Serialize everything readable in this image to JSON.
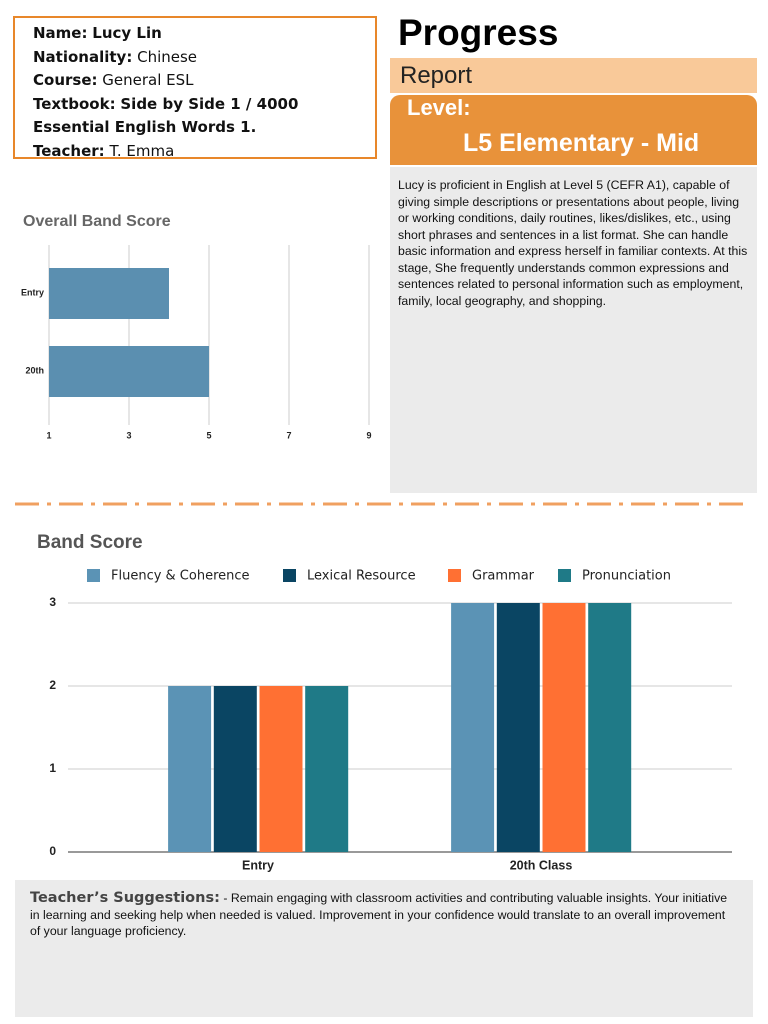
{
  "student": [
    {
      "label": "Name:",
      "value": "Lucy Lin"
    },
    {
      "label": "Nationality:",
      "value": "Chinese"
    },
    {
      "label": "Course:",
      "value": "General ESL"
    },
    {
      "label": "Textbook:",
      "value": "Side by Side 1 / 4000 Essential English Words 1."
    },
    {
      "label": "Teacher:",
      "value": "T. Emma"
    }
  ],
  "header": {
    "title": "Progress",
    "subtitle": "Report",
    "level_label": "Level:",
    "level": "L5 Elementary - Mid"
  },
  "description": "Lucy is proficient in English at Level 5 (CEFR A1), capable of giving simple descriptions or presentations about people, living or working conditions, daily routines, likes/dislikes, etc., using short phrases and sentences in a list format. She can handle basic information and express herself in familiar contexts. At this stage, She frequently understands common expressions and sentences related to personal information such as employment, family, local geography, and shopping.",
  "chart_data": [
    {
      "type": "hbar",
      "title": "Overall Band Score",
      "categories": [
        "Entry",
        "20th"
      ],
      "values": [
        4,
        5
      ],
      "color": "#5b8fb0",
      "xlim": [
        1,
        9
      ],
      "xticks": [
        1,
        3,
        5,
        7,
        9
      ],
      "grid": true
    },
    {
      "type": "bar",
      "title": "Band Score",
      "categories": [
        "Entry",
        "20th Class"
      ],
      "series": [
        {
          "name": "Fluency & Coherence",
          "color": "#5b93b5",
          "values": [
            2,
            3
          ]
        },
        {
          "name": "Lexical Resource",
          "color": "#0a4563",
          "values": [
            2,
            3
          ]
        },
        {
          "name": "Grammar",
          "color": "#ff7033",
          "values": [
            2,
            3
          ]
        },
        {
          "name": "Pronunciation",
          "color": "#1f7a87",
          "values": [
            2,
            3
          ]
        }
      ],
      "ylim": [
        0,
        3
      ],
      "yticks": [
        0,
        1,
        2,
        3
      ],
      "grid": true,
      "legend": "top"
    }
  ],
  "suggestions": {
    "label": "Teacher’s Suggestions:",
    "text": "-  Remain engaging with classroom activities and contributing valuable insights. Your initiative in learning and seeking help when needed is valued. Improvement in your confidence would translate to an overall improvement of your language proficiency."
  }
}
